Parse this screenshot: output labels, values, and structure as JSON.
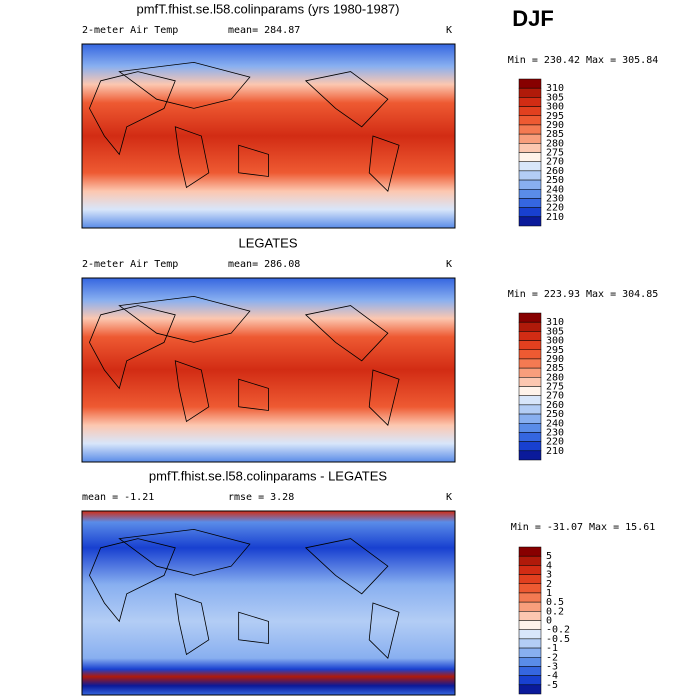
{
  "header": {
    "season": "DJF"
  },
  "panels": [
    {
      "title": "pmfT.fhist.se.l58.colinparams (yrs 1980-1987)",
      "left_label": "2-meter Air Temp",
      "center_label": "mean= 284.87",
      "units": "K",
      "min_max": "Min = 230.42 Max = 305.84",
      "colorbar": {
        "labels": [
          "310",
          "305",
          "300",
          "295",
          "290",
          "285",
          "280",
          "275",
          "270",
          "260",
          "250",
          "240",
          "230",
          "220",
          "210"
        ],
        "colors": [
          "#870000",
          "#b01a0a",
          "#d22c14",
          "#e2401f",
          "#ee5a32",
          "#f47a52",
          "#f89e7c",
          "#fcc7b0",
          "#fff3ea",
          "#d8e6fa",
          "#b3cdf5",
          "#88aff0",
          "#5a8ce8",
          "#3566e0",
          "#1840d0",
          "#0a1a9a"
        ]
      }
    },
    {
      "title": "LEGATES",
      "left_label": "2-meter Air Temp",
      "center_label": "mean= 286.08",
      "units": "K",
      "min_max": "Min = 223.93 Max = 304.85",
      "colorbar": {
        "labels": [
          "310",
          "305",
          "300",
          "295",
          "290",
          "285",
          "280",
          "275",
          "270",
          "260",
          "250",
          "240",
          "230",
          "220",
          "210"
        ],
        "colors": [
          "#870000",
          "#b01a0a",
          "#d22c14",
          "#e2401f",
          "#ee5a32",
          "#f47a52",
          "#f89e7c",
          "#fcc7b0",
          "#fff3ea",
          "#d8e6fa",
          "#b3cdf5",
          "#88aff0",
          "#5a8ce8",
          "#3566e0",
          "#1840d0",
          "#0a1a9a"
        ]
      }
    },
    {
      "title": "pmfT.fhist.se.l58.colinparams - LEGATES",
      "left_label": "mean =   -1.21",
      "center_label": "rmse =    3.28",
      "units": "K",
      "min_max": "Min = -31.07 Max =   15.61",
      "colorbar": {
        "labels": [
          "5",
          "4",
          "3",
          "2",
          "1",
          "0.5",
          "0.2",
          "0",
          "-0.2",
          "-0.5",
          "-1",
          "-2",
          "-3",
          "-4",
          "-5"
        ],
        "colors": [
          "#870000",
          "#b01a0a",
          "#d22c14",
          "#e2401f",
          "#ee5a32",
          "#f47a52",
          "#f89e7c",
          "#fcc7b0",
          "#fff3ea",
          "#d8e6fa",
          "#b3cdf5",
          "#88aff0",
          "#5a8ce8",
          "#3566e0",
          "#1840d0",
          "#0a1a9a"
        ]
      }
    }
  ]
}
